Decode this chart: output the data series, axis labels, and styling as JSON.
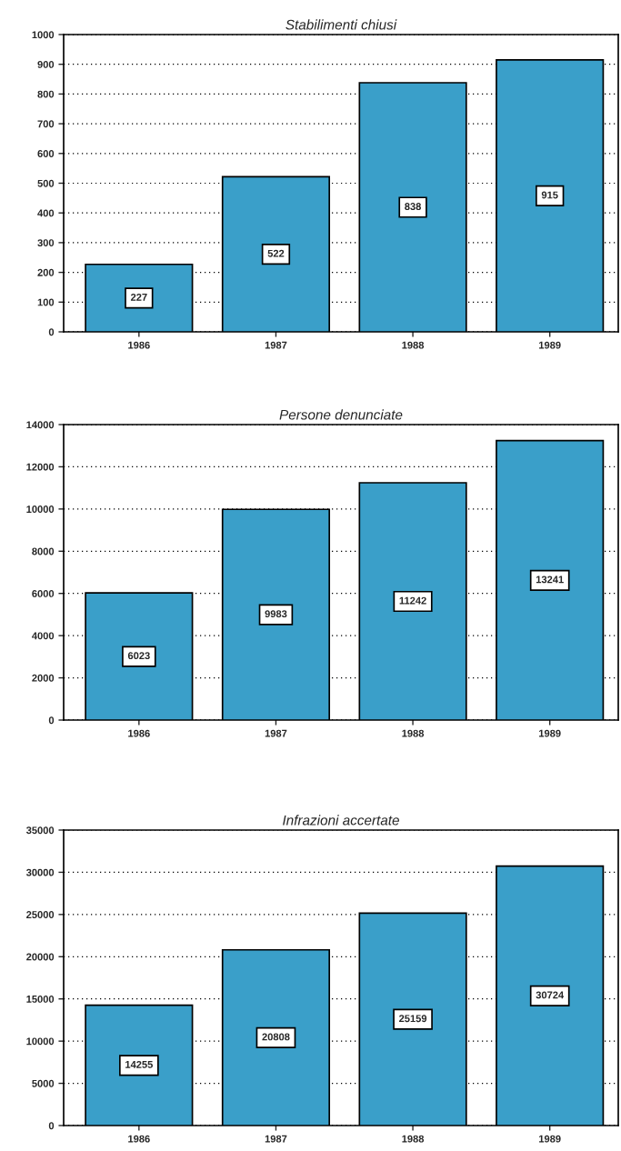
{
  "chart_data": [
    {
      "type": "bar",
      "title": "Stabilimenti chiusi",
      "categories": [
        "1986",
        "1987",
        "1988",
        "1989"
      ],
      "values": [
        227,
        522,
        838,
        915
      ],
      "color": "#3a9fc9",
      "ylim": [
        0,
        1000
      ],
      "yticks": [
        0,
        100,
        200,
        300,
        400,
        500,
        600,
        700,
        800,
        900,
        1000
      ],
      "grid": "y",
      "data_labels": true
    },
    {
      "type": "bar",
      "title": "Persone denunciate",
      "categories": [
        "1986",
        "1987",
        "1988",
        "1989"
      ],
      "values": [
        6023,
        9983,
        11242,
        13241
      ],
      "color": "#3a9fc9",
      "ylim": [
        0,
        14000
      ],
      "yticks": [
        0,
        2000,
        4000,
        6000,
        8000,
        10000,
        12000,
        14000
      ],
      "grid": "y",
      "data_labels": true
    },
    {
      "type": "bar",
      "title": "Infrazioni accertate",
      "categories": [
        "1986",
        "1987",
        "1988",
        "1989"
      ],
      "values": [
        14255,
        20808,
        25159,
        30724
      ],
      "color": "#3a9fc9",
      "ylim": [
        0,
        35000
      ],
      "yticks": [
        0,
        5000,
        10000,
        15000,
        20000,
        25000,
        30000,
        35000
      ],
      "grid": "y",
      "data_labels": true
    }
  ]
}
